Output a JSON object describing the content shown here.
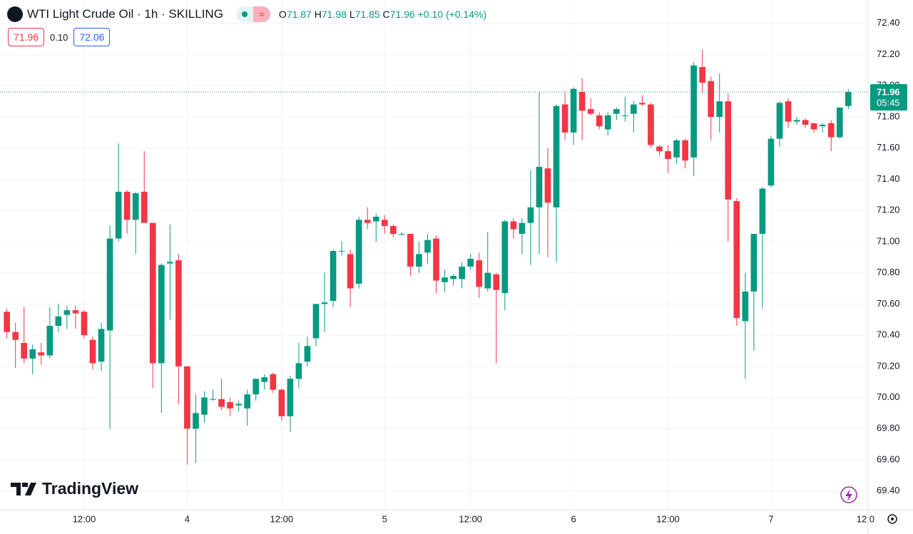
{
  "chart_data": {
    "type": "candlestick",
    "title": "WTI Light Crude Oil · 1h · SKILLING",
    "legend": {
      "o_label": "O",
      "o": "71.87",
      "h_label": "H",
      "h": "71.98",
      "l_label": "L",
      "l": "71.85",
      "c_label": "C",
      "c": "71.96",
      "change": "+0.10",
      "change_pct": "(+0.14%)"
    },
    "bid": "71.96",
    "spread": "0.10",
    "ask": "72.06",
    "last_price": 71.96,
    "countdown": "05:45",
    "logo": "TradingView",
    "up_color": "#089981",
    "down_color": "#f23645",
    "grid": true,
    "x": [
      0,
      1,
      2,
      3,
      4,
      5,
      6,
      7,
      8,
      9,
      10,
      11,
      12,
      13,
      14,
      15,
      16,
      17,
      18,
      19,
      20,
      21,
      22,
      23,
      24,
      25,
      26,
      27,
      28,
      29,
      30,
      31,
      32,
      33,
      34,
      35,
      36,
      37,
      38,
      39,
      40,
      41,
      42,
      43,
      44,
      45,
      46,
      47,
      48,
      49,
      50,
      51,
      52,
      53,
      54,
      55,
      56,
      57,
      58,
      59,
      60,
      61,
      62,
      63,
      64,
      65,
      66,
      67,
      68,
      69,
      70,
      71,
      72,
      73,
      74,
      75,
      76,
      77,
      78,
      79,
      80,
      81,
      82,
      83,
      84,
      85,
      86,
      87,
      88,
      89,
      90,
      91,
      92,
      93,
      94,
      95,
      96,
      97,
      98
    ],
    "open": [
      70.55,
      70.42,
      70.35,
      70.25,
      70.29,
      70.27,
      70.46,
      70.53,
      70.56,
      70.55,
      70.37,
      70.23,
      70.43,
      71.02,
      71.32,
      71.14,
      71.32,
      71.12,
      70.22,
      70.86,
      70.88,
      70.2,
      69.8,
      69.89,
      69.99,
      69.99,
      69.97,
      69.95,
      69.93,
      70.02,
      70.1,
      70.15,
      70.05,
      69.88,
      70.12,
      70.23,
      70.38,
      70.6,
      70.62,
      70.94,
      70.92,
      70.73,
      71.14,
      71.13,
      71.14,
      71.1,
      71.05,
      71.05,
      70.84,
      70.93,
      71.02,
      70.74,
      70.76,
      70.76,
      70.84,
      70.88,
      70.7,
      70.79,
      70.67,
      71.13,
      71.05,
      71.12,
      71.22,
      71.47,
      71.22,
      71.88,
      71.7,
      71.96,
      71.85,
      71.81,
      71.72,
      71.82,
      71.81,
      71.82,
      71.89,
      71.88,
      71.61,
      71.58,
      71.54,
      71.65,
      71.54,
      72.12,
      72.03,
      71.8,
      71.9,
      71.26,
      70.49,
      70.68,
      71.05,
      71.36,
      71.66,
      71.9,
      71.77,
      71.78,
      71.76,
      71.74,
      71.76,
      71.67,
      71.87
    ],
    "high": [
      70.57,
      70.48,
      70.58,
      70.34,
      70.35,
      70.58,
      70.6,
      70.59,
      70.59,
      70.56,
      70.39,
      70.48,
      71.1,
      71.63,
      71.33,
      71.32,
      71.58,
      71.12,
      70.86,
      71.11,
      70.92,
      70.2,
      70.02,
      70.04,
      70.05,
      70.12,
      70.0,
      69.98,
      70.05,
      70.12,
      70.15,
      70.16,
      70.06,
      70.14,
      70.35,
      70.39,
      70.6,
      70.8,
      70.95,
      71.0,
      70.95,
      71.16,
      71.22,
      71.18,
      71.17,
      71.11,
      71.06,
      71.05,
      71.0,
      71.05,
      71.04,
      70.82,
      70.79,
      70.87,
      70.92,
      70.93,
      71.06,
      70.8,
      71.14,
      71.15,
      71.15,
      71.46,
      71.96,
      71.6,
      71.88,
      71.96,
      71.99,
      72.05,
      71.92,
      71.83,
      71.83,
      71.86,
      71.93,
      71.9,
      71.94,
      71.89,
      71.62,
      71.62,
      71.66,
      71.66,
      72.15,
      72.23,
      72.06,
      72.08,
      71.95,
      71.28,
      70.8,
      71.04,
      71.35,
      71.68,
      71.9,
      71.92,
      71.8,
      71.79,
      71.76,
      71.76,
      71.78,
      71.86,
      71.98
    ],
    "low": [
      70.38,
      70.19,
      70.22,
      70.15,
      70.21,
      70.25,
      70.42,
      70.44,
      70.44,
      70.38,
      70.18,
      70.17,
      69.8,
      71.0,
      71.05,
      70.92,
      71.12,
      70.06,
      69.9,
      70.5,
      69.96,
      69.57,
      69.58,
      69.84,
      69.98,
      69.92,
      69.88,
      69.91,
      69.82,
      69.98,
      70.05,
      70.03,
      69.85,
      69.78,
      70.06,
      70.2,
      70.33,
      70.42,
      70.58,
      70.91,
      70.58,
      70.7,
      71.08,
      71.0,
      71.05,
      71.03,
      71.04,
      70.78,
      70.8,
      70.86,
      70.67,
      70.68,
      70.72,
      70.7,
      70.82,
      70.64,
      70.68,
      70.22,
      70.56,
      71.02,
      70.92,
      70.85,
      70.92,
      70.9,
      70.87,
      71.65,
      71.62,
      71.65,
      71.81,
      71.72,
      71.68,
      71.78,
      71.77,
      71.7,
      71.87,
      71.6,
      71.55,
      71.44,
      71.5,
      71.47,
      71.42,
      71.95,
      71.65,
      71.7,
      71.0,
      70.46,
      70.12,
      70.3,
      70.57,
      71.35,
      71.61,
      71.73,
      71.75,
      71.73,
      71.7,
      71.7,
      71.58,
      71.66,
      71.85
    ],
    "close": [
      70.42,
      70.37,
      70.25,
      70.31,
      70.27,
      70.46,
      70.52,
      70.56,
      70.54,
      70.4,
      70.22,
      70.44,
      71.02,
      71.32,
      71.14,
      71.31,
      71.12,
      70.22,
      70.85,
      70.87,
      70.2,
      69.8,
      69.9,
      70.0,
      69.99,
      69.94,
      69.93,
      69.96,
      70.02,
      70.12,
      70.13,
      70.05,
      69.88,
      70.12,
      70.22,
      70.33,
      70.6,
      70.61,
      70.94,
      70.94,
      70.7,
      71.14,
      71.12,
      71.16,
      71.1,
      71.05,
      71.05,
      70.84,
      70.92,
      71.01,
      70.75,
      70.77,
      70.78,
      70.84,
      70.89,
      70.71,
      70.8,
      70.69,
      71.13,
      71.08,
      71.12,
      71.22,
      71.48,
      71.25,
      71.87,
      71.7,
      71.98,
      71.84,
      71.82,
      71.74,
      71.81,
      71.85,
      71.81,
      71.88,
      71.88,
      71.62,
      71.58,
      71.53,
      71.65,
      71.52,
      72.13,
      72.02,
      71.8,
      71.9,
      71.27,
      70.51,
      70.68,
      71.05,
      71.34,
      71.66,
      71.89,
      71.77,
      71.78,
      71.75,
      71.72,
      71.75,
      71.67,
      71.86,
      71.96
    ],
    "xlim": [
      -0.8,
      100.3
    ],
    "xticks": [
      {
        "value": 9,
        "label": "12:00"
      },
      {
        "value": 21,
        "label": "4"
      },
      {
        "value": 32,
        "label": "12:00"
      },
      {
        "value": 44,
        "label": "5"
      },
      {
        "value": 54,
        "label": "12:00"
      },
      {
        "value": 66,
        "label": "6"
      },
      {
        "value": 77,
        "label": "12:00"
      },
      {
        "value": 89,
        "label": "7"
      },
      {
        "value": 100,
        "label": "12:0"
      }
    ],
    "ylim": [
      69.28,
      72.55
    ],
    "yticks": [
      {
        "value": 69.4,
        "label": "69.40"
      },
      {
        "value": 69.6,
        "label": "69.60"
      },
      {
        "value": 69.8,
        "label": "69.80"
      },
      {
        "value": 70,
        "label": "70.00"
      },
      {
        "value": 70.2,
        "label": "70.20"
      },
      {
        "value": 70.4,
        "label": "70.40"
      },
      {
        "value": 70.6,
        "label": "70.60"
      },
      {
        "value": 70.8,
        "label": "70.80"
      },
      {
        "value": 71,
        "label": "71.00"
      },
      {
        "value": 71.2,
        "label": "71.20"
      },
      {
        "value": 71.4,
        "label": "71.40"
      },
      {
        "value": 71.6,
        "label": "71.60"
      },
      {
        "value": 71.8,
        "label": "71.80"
      },
      {
        "value": 72,
        "label": "72.00"
      },
      {
        "value": 72.2,
        "label": "72.20"
      },
      {
        "value": 72.4,
        "label": "72.40"
      }
    ]
  }
}
